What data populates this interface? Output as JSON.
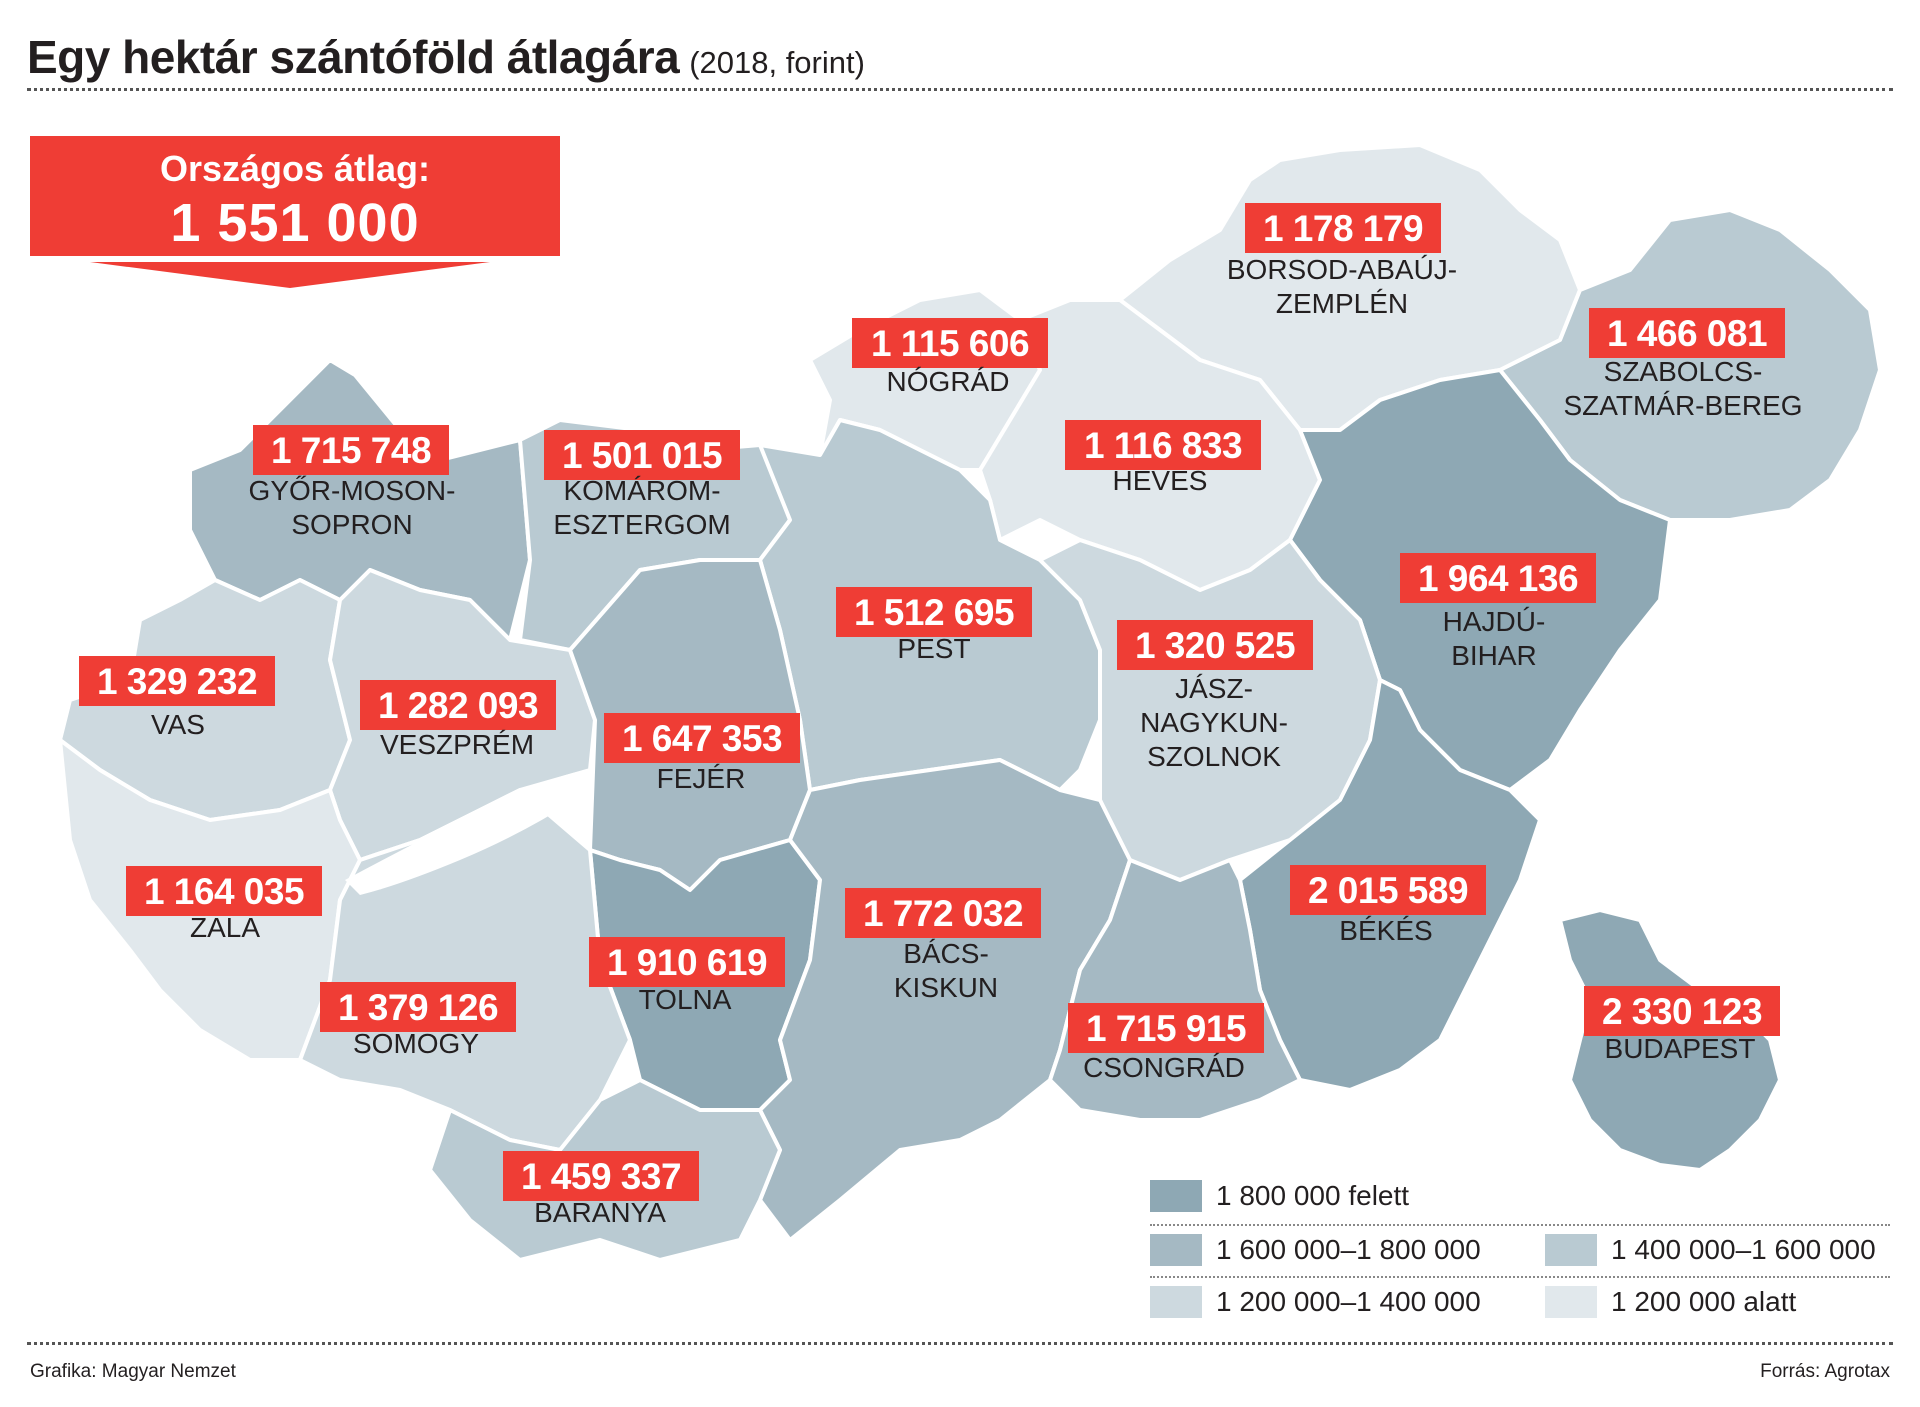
{
  "header": {
    "title": "Egy hektár szántóföld átlagára",
    "subtitle": "(2018, forint)"
  },
  "national_average": {
    "label": "Országos átlag:",
    "value": "1 551 000"
  },
  "colors": {
    "highlight": "#ef3d35",
    "over_1800000": "#8ea8b4",
    "range_1600000_1800000": "#a5b9c3",
    "range_1400000_1600000": "#b9cad2",
    "range_1200000_1400000": "#cdd9df",
    "under_1200000": "#e1e8ec"
  },
  "counties": [
    {
      "id": "gyor",
      "name_lines": [
        "GYŐR-MOSON-",
        "SOPRON"
      ],
      "value": "1 715 748",
      "color": "#a5b9c3"
    },
    {
      "id": "komarom",
      "name_lines": [
        "KOMÁROM-",
        "ESZTERGOM"
      ],
      "value": "1 501 015",
      "color": "#b9cad2"
    },
    {
      "id": "nograd",
      "name_lines": [
        "NÓGRÁD"
      ],
      "value": "1 115 606",
      "color": "#e1e8ec"
    },
    {
      "id": "borsod",
      "name_lines": [
        "BORSOD-ABAÚJ-",
        "ZEMPLÉN"
      ],
      "value": "1 178 179",
      "color": "#e1e8ec"
    },
    {
      "id": "szabolcs",
      "name_lines": [
        "SZABOLCS-",
        "SZATMÁR-BEREG"
      ],
      "value": "1 466 081",
      "color": "#b9cad2"
    },
    {
      "id": "heves",
      "name_lines": [
        "HEVES"
      ],
      "value": "1 116 833",
      "color": "#e1e8ec"
    },
    {
      "id": "hajdu",
      "name_lines": [
        "HAJDÚ-",
        "BIHAR"
      ],
      "value": "1 964 136",
      "color": "#8ea8b4"
    },
    {
      "id": "pest",
      "name_lines": [
        "PEST"
      ],
      "value": "1 512 695",
      "color": "#b9cad2"
    },
    {
      "id": "jasz",
      "name_lines": [
        "JÁSZ-",
        "NAGYKUN-",
        "SZOLNOK"
      ],
      "value": "1 320 525",
      "color": "#cdd9df"
    },
    {
      "id": "vas",
      "name_lines": [
        "VAS"
      ],
      "value": "1 329 232",
      "color": "#cdd9df"
    },
    {
      "id": "veszprem",
      "name_lines": [
        "VESZPRÉM"
      ],
      "value": "1 282 093",
      "color": "#cdd9df"
    },
    {
      "id": "fejer",
      "name_lines": [
        "FEJÉR"
      ],
      "value": "1 647 353",
      "color": "#a5b9c3"
    },
    {
      "id": "zala",
      "name_lines": [
        "ZALA"
      ],
      "value": "1 164 035",
      "color": "#e1e8ec"
    },
    {
      "id": "tolna",
      "name_lines": [
        "TOLNA"
      ],
      "value": "1 910 619",
      "color": "#8ea8b4"
    },
    {
      "id": "bacs",
      "name_lines": [
        "BÁCS-",
        "KISKUN"
      ],
      "value": "1 772 032",
      "color": "#a5b9c3"
    },
    {
      "id": "bekes",
      "name_lines": [
        "BÉKÉS"
      ],
      "value": "2 015 589",
      "color": "#8ea8b4"
    },
    {
      "id": "somogy",
      "name_lines": [
        "SOMOGY"
      ],
      "value": "1 379 126",
      "color": "#cdd9df"
    },
    {
      "id": "csongrad",
      "name_lines": [
        "CSONGRÁD"
      ],
      "value": "1 715 915",
      "color": "#a5b9c3"
    },
    {
      "id": "baranya",
      "name_lines": [
        "BARANYA"
      ],
      "value": "1 459 337",
      "color": "#b9cad2"
    },
    {
      "id": "budapest",
      "name_lines": [
        "BUDAPEST"
      ],
      "value": "2 330 123",
      "color": "#8ea8b4"
    }
  ],
  "legend": [
    {
      "label": "1 800 000 felett",
      "color": "#8ea8b4"
    },
    {
      "label": "1 600 000–1 800 000",
      "color": "#a5b9c3"
    },
    {
      "label": "1 400 000–1 600 000",
      "color": "#b9cad2"
    },
    {
      "label": "1 200 000–1 400 000",
      "color": "#cdd9df"
    },
    {
      "label": "1 200 000 alatt",
      "color": "#e1e8ec"
    }
  ],
  "footer": {
    "left": "Grafika: Magyar Nemzet",
    "right": "Forrás: Agrotax"
  }
}
